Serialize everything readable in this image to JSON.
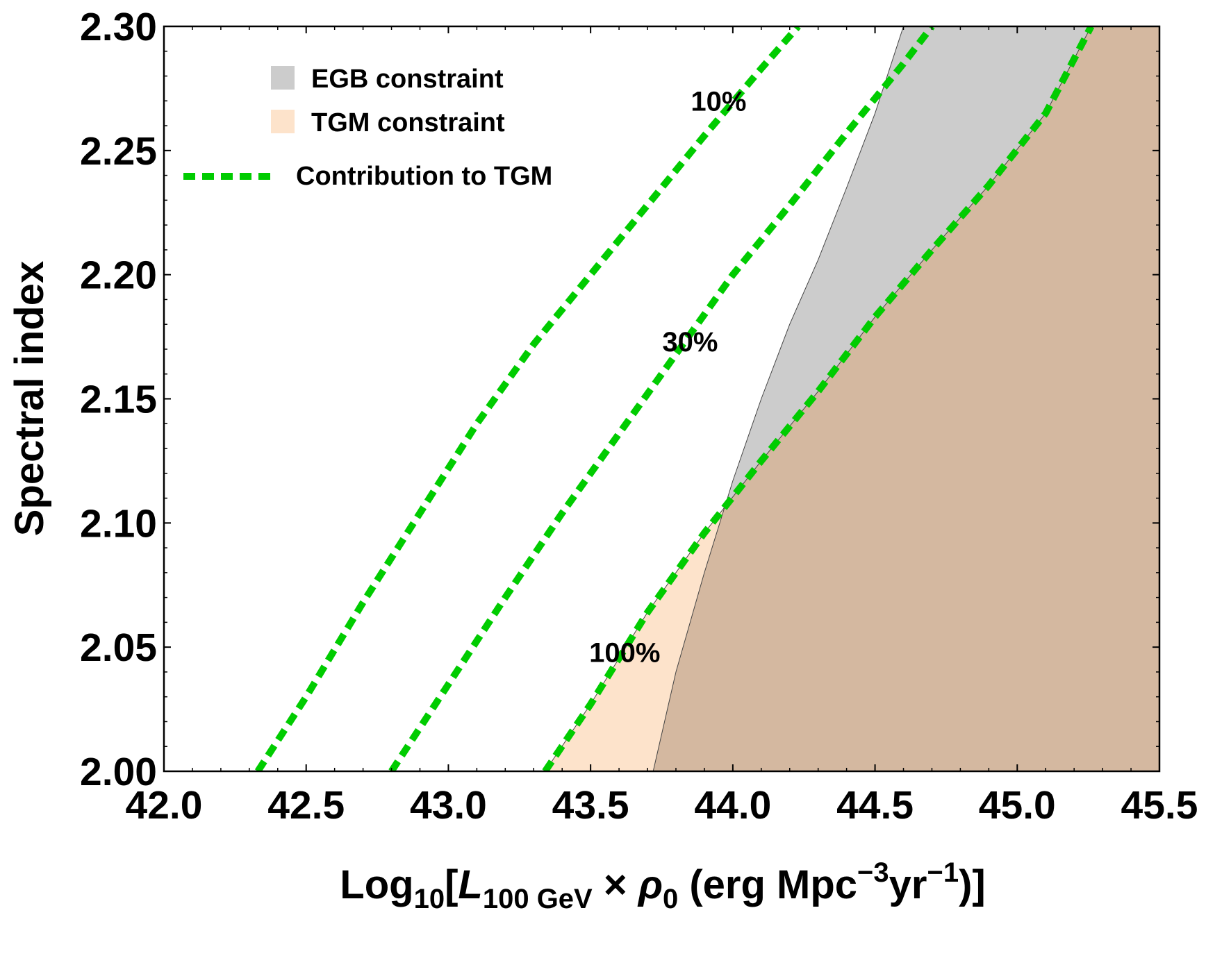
{
  "chart_data": {
    "type": "area",
    "xlabel": {
      "prefix": "Log",
      "prefix_sub": "10",
      "bracket_open": "[",
      "L": "L",
      "L_sub": "100 GeV",
      "times": " × ",
      "rho": "ρ",
      "rho_sub": "0",
      "units_open": " (erg Mpc",
      "mpc_sup": "−3",
      "yr": "yr",
      "yr_sup": "−1",
      "units_close": ")]"
    },
    "ylabel": "Spectral index",
    "xlim": [
      42.0,
      45.5
    ],
    "ylim": [
      2.0,
      2.3
    ],
    "x_ticks": [
      42.0,
      42.5,
      43.0,
      43.5,
      44.0,
      44.5,
      45.0,
      45.5
    ],
    "x_tick_labels": [
      "42.0",
      "42.5",
      "43.0",
      "43.5",
      "44.0",
      "44.5",
      "45.0",
      "45.5"
    ],
    "y_ticks": [
      2.0,
      2.05,
      2.1,
      2.15,
      2.2,
      2.25,
      2.3
    ],
    "y_tick_labels": [
      "2.00",
      "2.05",
      "2.10",
      "2.15",
      "2.20",
      "2.25",
      "2.30"
    ],
    "grid": false,
    "legend_position": "top-left",
    "legend": [
      {
        "label": "EGB constraint",
        "kind": "swatch",
        "color": "#cccccc"
      },
      {
        "label": "TGM constraint",
        "kind": "swatch",
        "color": "#fde3cb"
      },
      {
        "label": "Contribution to TGM",
        "kind": "dashed-line",
        "color": "#00cc00"
      }
    ],
    "regions": [
      {
        "name": "EGB constraint",
        "color": "#cccccc",
        "boundary": [
          [
            43.72,
            2.0
          ],
          [
            43.8,
            2.04
          ],
          [
            43.9,
            2.08
          ],
          [
            44.0,
            2.117
          ],
          [
            44.1,
            2.15
          ],
          [
            44.2,
            2.18
          ],
          [
            44.3,
            2.206
          ],
          [
            44.4,
            2.235
          ],
          [
            44.5,
            2.265
          ],
          [
            44.6,
            2.3
          ]
        ]
      },
      {
        "name": "TGM constraint",
        "color": "#fde3cb",
        "boundary": [
          [
            43.34,
            2.0
          ],
          [
            43.5,
            2.027
          ],
          [
            43.7,
            2.064
          ],
          [
            43.9,
            2.096
          ],
          [
            44.1,
            2.125
          ],
          [
            44.3,
            2.153
          ],
          [
            44.5,
            2.183
          ],
          [
            44.7,
            2.21
          ],
          [
            44.9,
            2.236
          ],
          [
            45.1,
            2.265
          ],
          [
            45.26,
            2.3
          ]
        ]
      }
    ],
    "overlap_color": "#d4b8a0",
    "series": [
      {
        "name": "10%",
        "style": "dashed",
        "color": "#00cc00",
        "x": [
          42.33,
          42.5,
          42.7,
          42.9,
          43.1,
          43.3,
          43.5,
          43.7,
          43.9,
          44.1,
          44.23
        ],
        "y": [
          2.0,
          2.03,
          2.068,
          2.104,
          2.14,
          2.172,
          2.2,
          2.228,
          2.256,
          2.283,
          2.3
        ]
      },
      {
        "name": "30%",
        "style": "dashed",
        "color": "#00cc00",
        "x": [
          42.8,
          43.0,
          43.2,
          43.4,
          43.6,
          43.8,
          44.0,
          44.2,
          44.4,
          44.6,
          44.7
        ],
        "y": [
          2.0,
          2.035,
          2.07,
          2.104,
          2.136,
          2.168,
          2.2,
          2.228,
          2.257,
          2.285,
          2.3
        ]
      },
      {
        "name": "100%",
        "style": "dashed",
        "color": "#00cc00",
        "x": [
          43.34,
          43.5,
          43.7,
          43.9,
          44.1,
          44.3,
          44.5,
          44.7,
          44.9,
          45.1,
          45.26
        ],
        "y": [
          2.0,
          2.027,
          2.064,
          2.096,
          2.125,
          2.153,
          2.183,
          2.21,
          2.236,
          2.265,
          2.3
        ]
      }
    ],
    "contour_labels": [
      {
        "text": "10%",
        "x": 43.95,
        "y": 2.27
      },
      {
        "text": "30%",
        "x": 43.85,
        "y": 2.173
      },
      {
        "text": "100%",
        "x": 43.62,
        "y": 2.048
      }
    ]
  }
}
